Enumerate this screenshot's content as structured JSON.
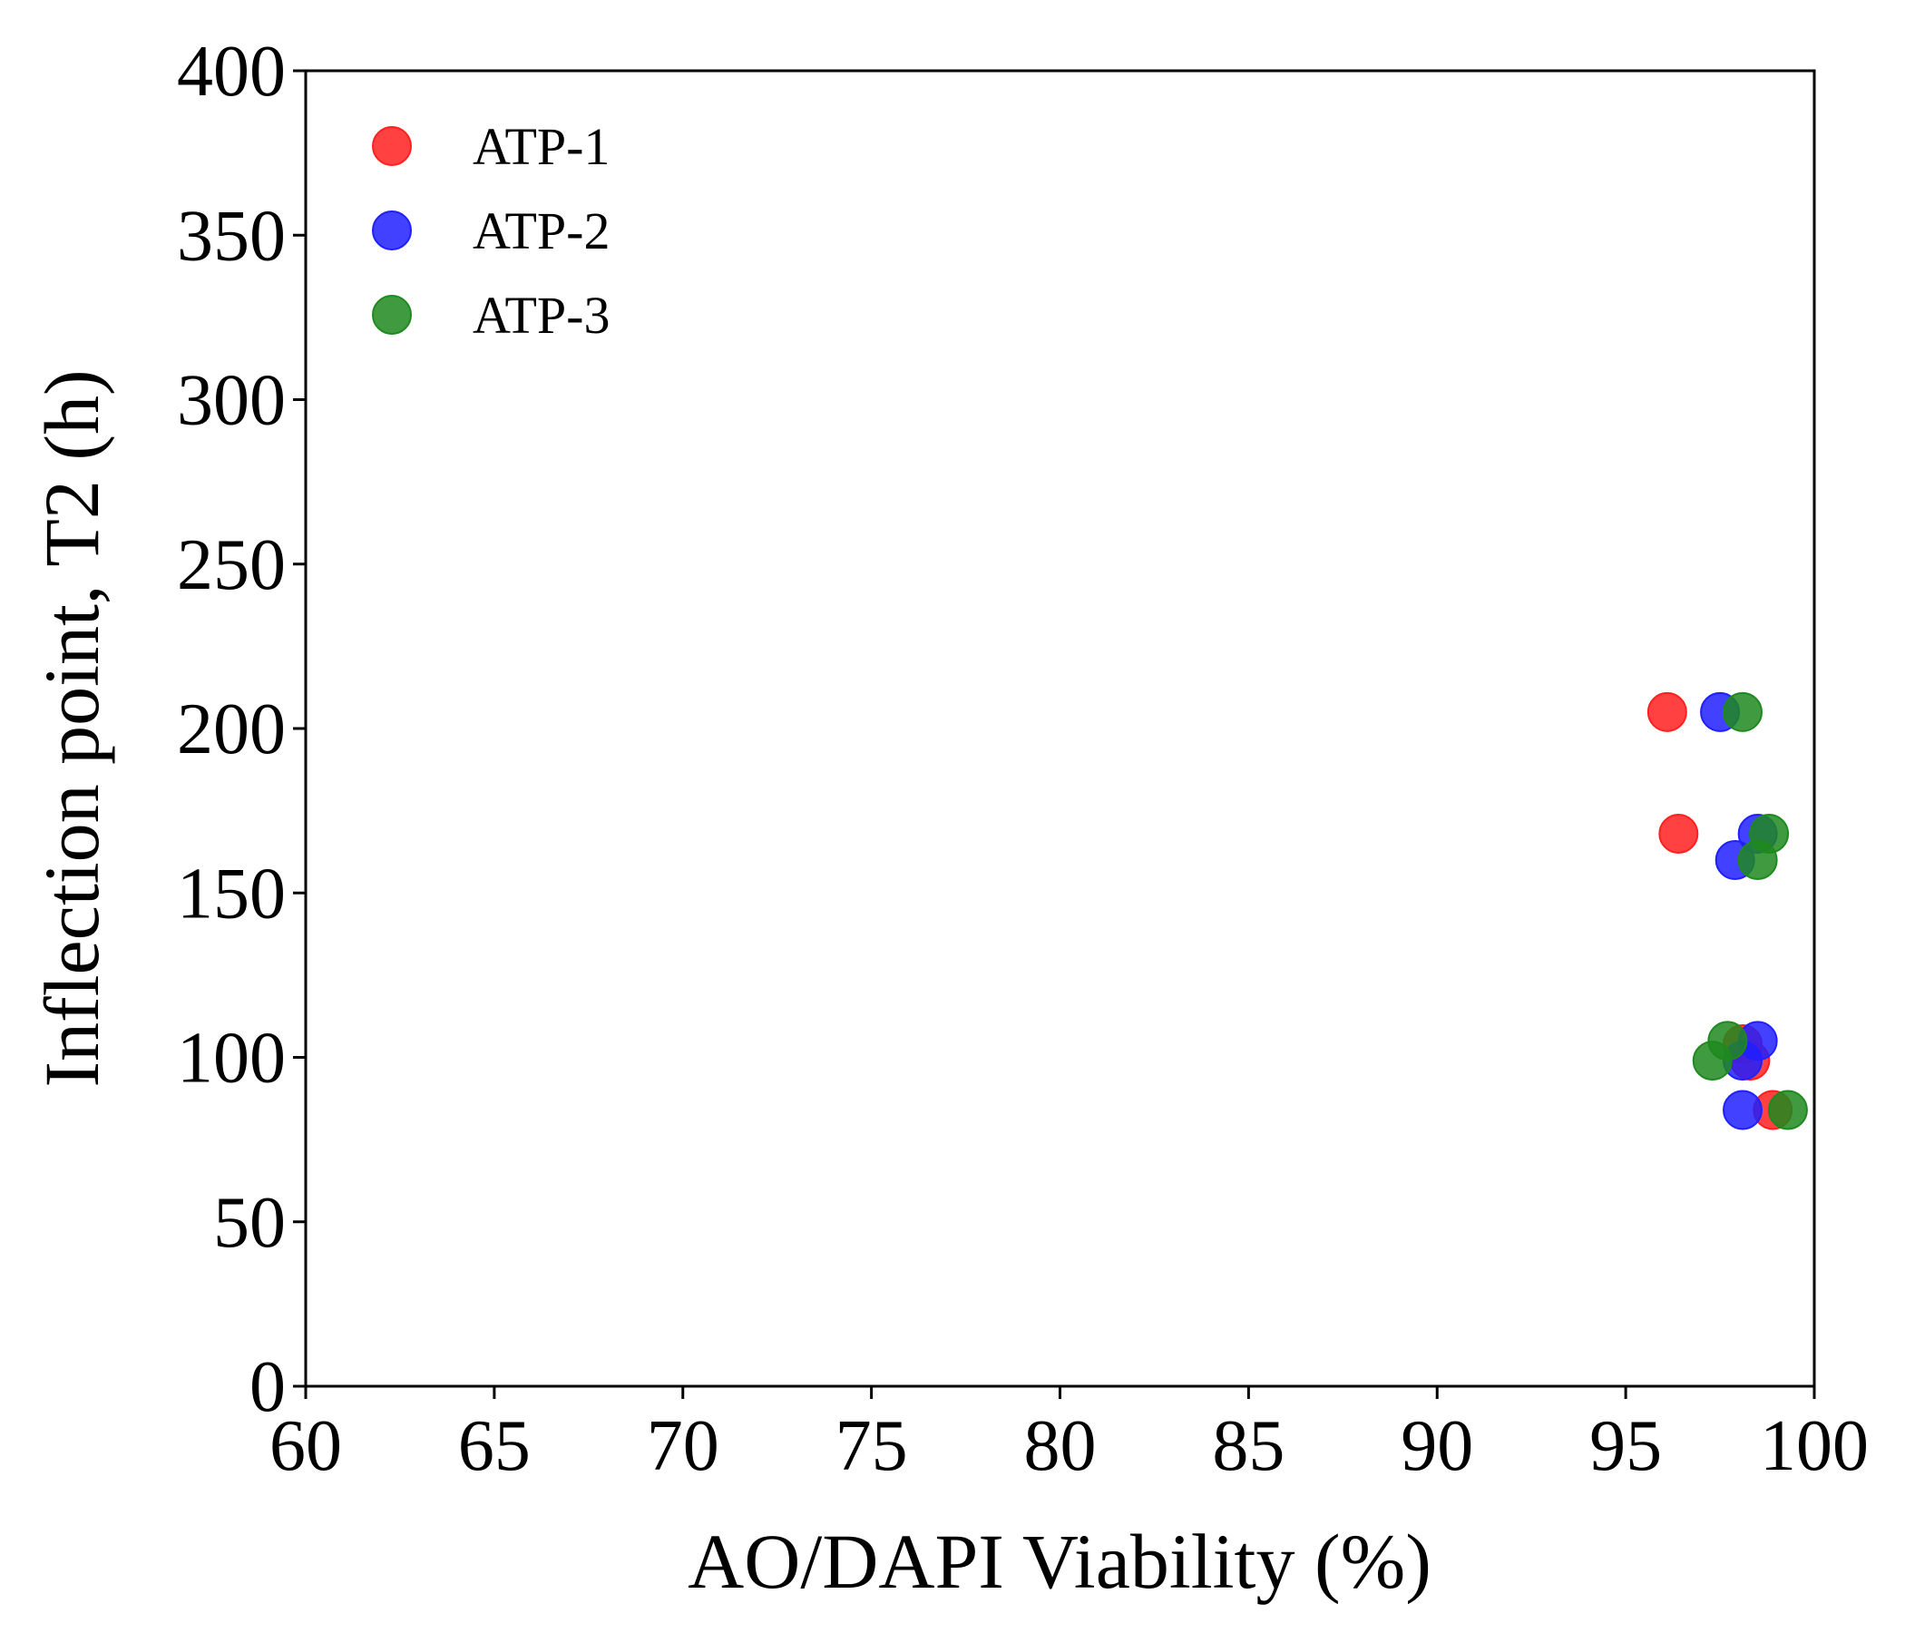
{
  "chart_data": {
    "type": "scatter",
    "title": "",
    "xlabel": "AO/DAPI Viability (%)",
    "ylabel": "Inflection point, T2 (h)",
    "xlim": [
      60,
      100
    ],
    "ylim": [
      0,
      400
    ],
    "xticks": [
      "60",
      "65",
      "70",
      "75",
      "80",
      "85",
      "90",
      "95",
      "100"
    ],
    "yticks": [
      "0",
      "50",
      "100",
      "150",
      "200",
      "250",
      "300",
      "350",
      "400"
    ],
    "grid": false,
    "legend_position": "top-left",
    "series": [
      {
        "name": "ATP-1",
        "color": "#ff2020",
        "points": [
          {
            "x": 96.1,
            "y": 205
          },
          {
            "x": 96.4,
            "y": 168
          },
          {
            "x": 98.1,
            "y": 104
          },
          {
            "x": 98.3,
            "y": 99
          },
          {
            "x": 98.9,
            "y": 84
          }
        ]
      },
      {
        "name": "ATP-2",
        "color": "#2020ff",
        "points": [
          {
            "x": 97.5,
            "y": 205
          },
          {
            "x": 98.5,
            "y": 168
          },
          {
            "x": 97.9,
            "y": 160
          },
          {
            "x": 98.5,
            "y": 105
          },
          {
            "x": 98.1,
            "y": 99
          },
          {
            "x": 98.1,
            "y": 84
          }
        ]
      },
      {
        "name": "ATP-3",
        "color": "#1e8a1e",
        "points": [
          {
            "x": 98.1,
            "y": 205
          },
          {
            "x": 98.8,
            "y": 168
          },
          {
            "x": 98.5,
            "y": 160
          },
          {
            "x": 97.7,
            "y": 105
          },
          {
            "x": 97.3,
            "y": 99
          },
          {
            "x": 99.3,
            "y": 84
          }
        ]
      }
    ]
  }
}
